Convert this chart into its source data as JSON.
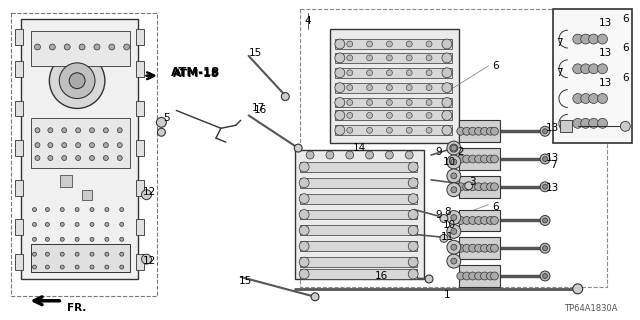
{
  "bg_color": "#ffffff",
  "part_code": "TP64A1830A",
  "fr_label": "FR.",
  "atm_label": "ATM-18",
  "fig_size": [
    6.4,
    3.2
  ],
  "dpi": 100,
  "line_color": "#333333",
  "light_gray": "#cccccc",
  "mid_gray": "#888888",
  "dark_gray": "#555555"
}
